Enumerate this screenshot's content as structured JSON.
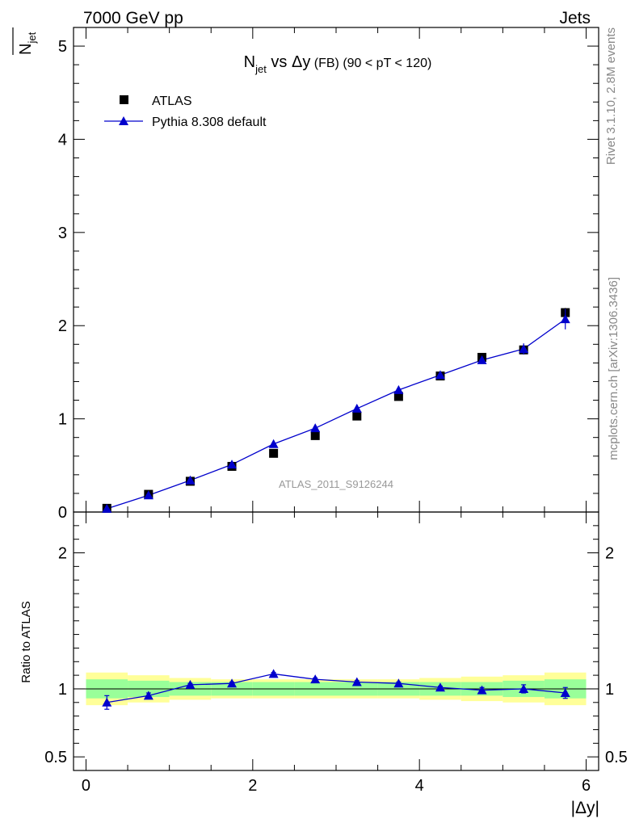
{
  "header": {
    "left": "7000 GeV pp",
    "right": "Jets"
  },
  "title": {
    "main": "N",
    "sub": "jet",
    "rest": " vs Δy",
    "cut": " (FB) (90 < pT < 120)"
  },
  "y_label": {
    "main": "N",
    "sub": "jet"
  },
  "ratio_label": "Ratio to ATLAS",
  "x_label": "|Δy|",
  "watermark": "ATLAS_2011_S9126244",
  "side_text": {
    "rivet": "Rivet 3.1.10,  2.8M events",
    "mcplots": "mcplots.cern.ch [arXiv:1306.3436]"
  },
  "legend": {
    "data": "ATLAS",
    "mc": "Pythia 8.308 default"
  },
  "colors": {
    "data": "#000000",
    "mc": "#0000cc",
    "band_inner": "#99ff99",
    "band_outer": "#ffff99"
  },
  "chart_data": {
    "type": "scatter",
    "x_bins": [
      0,
      0.5,
      1.0,
      1.5,
      2.0,
      2.5,
      3.0,
      3.5,
      4.0,
      4.5,
      5.0,
      5.5,
      6.0
    ],
    "x": [
      0.25,
      0.75,
      1.25,
      1.75,
      2.25,
      2.75,
      3.25,
      3.75,
      4.25,
      4.75,
      5.25,
      5.75
    ],
    "series": [
      {
        "name": "ATLAS",
        "values": [
          0.04,
          0.19,
          0.33,
          0.49,
          0.63,
          0.82,
          1.03,
          1.24,
          1.46,
          1.66,
          1.74,
          2.14
        ],
        "errors": [
          0.01,
          0.01,
          0.01,
          0.02,
          0.02,
          0.02,
          0.03,
          0.03,
          0.03,
          0.04,
          0.04,
          0.05
        ]
      },
      {
        "name": "Pythia 8.308 default",
        "values": [
          0.036,
          0.18,
          0.34,
          0.51,
          0.73,
          0.9,
          1.11,
          1.31,
          1.47,
          1.63,
          1.75,
          2.07
        ],
        "errors": [
          0.004,
          0.006,
          0.008,
          0.01,
          0.01,
          0.01,
          0.01,
          0.015,
          0.02,
          0.03,
          0.06,
          0.11
        ]
      }
    ],
    "ratio": {
      "values": [
        0.9,
        0.95,
        1.03,
        1.04,
        1.11,
        1.07,
        1.05,
        1.04,
        1.01,
        0.99,
        1.0,
        0.97
      ],
      "errors": [
        0.05,
        0.02,
        0.01,
        0.01,
        0.01,
        0.01,
        0.01,
        0.01,
        0.01,
        0.02,
        0.03,
        0.04
      ],
      "band_inner": [
        0.07,
        0.06,
        0.05,
        0.05,
        0.05,
        0.05,
        0.05,
        0.05,
        0.05,
        0.05,
        0.06,
        0.07
      ],
      "band_outer": [
        0.12,
        0.1,
        0.08,
        0.07,
        0.07,
        0.07,
        0.07,
        0.07,
        0.08,
        0.09,
        0.1,
        0.12
      ]
    },
    "xlim": [
      -0.15,
      6.15
    ],
    "ylim": [
      0,
      5.2
    ],
    "ratio_ylim": [
      0.4,
      2.3
    ],
    "xticks": [
      0,
      2,
      4,
      6
    ],
    "yticks": [
      0,
      1,
      2,
      3,
      4,
      5
    ],
    "ratio_yticks": [
      0.5,
      1,
      2
    ],
    "ratio_tick_labels": [
      "0.5",
      "1",
      "2"
    ],
    "xlabel": "|Δy|",
    "legend_position": "top-left"
  }
}
